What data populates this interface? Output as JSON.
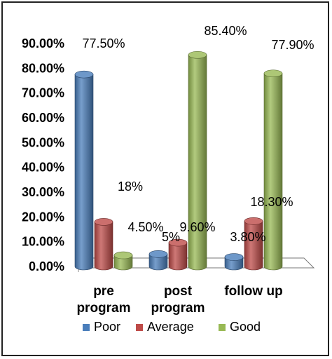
{
  "chart_data": {
    "type": "bar",
    "categories": [
      "pre program",
      "post program",
      "follow up"
    ],
    "category_lines": [
      [
        "pre",
        "program"
      ],
      [
        "post",
        "program"
      ],
      [
        "follow up"
      ]
    ],
    "series": [
      {
        "name": "Poor",
        "color": "#4a7ebb",
        "values": [
          77.5,
          5,
          3.8
        ],
        "labels": [
          "77.50%",
          "5%",
          "3.80%"
        ]
      },
      {
        "name": "Average",
        "color": "#be4b48",
        "values": [
          18,
          9.6,
          18.3
        ],
        "labels": [
          "18%",
          "9.60%",
          "18.30%"
        ]
      },
      {
        "name": "Good",
        "color": "#98b954",
        "values": [
          4.5,
          85.4,
          77.9
        ],
        "labels": [
          "4.50%",
          "85.40%",
          "77.90%"
        ]
      }
    ],
    "ylim": [
      0,
      90
    ],
    "yticks": [
      "0.00%",
      "10.00%",
      "20.00%",
      "30.00%",
      "40.00%",
      "50.00%",
      "60.00%",
      "70.00%",
      "80.00%",
      "90.00%"
    ],
    "legend_position": "bottom",
    "style": "3d-cylinder"
  }
}
